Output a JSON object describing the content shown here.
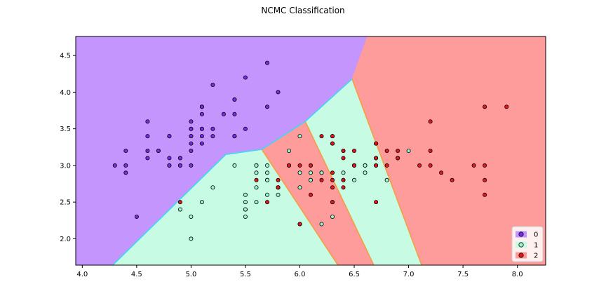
{
  "chart_data": {
    "type": "scatter",
    "title": "NCMC Classification",
    "xlabel": "",
    "ylabel": "",
    "xlim": [
      3.94,
      8.26
    ],
    "ylim": [
      1.64,
      4.76
    ],
    "xticks": [
      "4.0",
      "4.5",
      "5.0",
      "5.5",
      "6.0",
      "6.5",
      "7.0",
      "7.5",
      "8.0"
    ],
    "yticks": [
      "2.0",
      "2.5",
      "3.0",
      "3.5",
      "4.0",
      "4.5"
    ],
    "grid": false,
    "legend_position": "bottom-right",
    "colors": {
      "region_0": "#c495fd",
      "region_1": "#c8fbe4",
      "region_2": "#fe9b9b",
      "boundary_01": "#3fd8f2",
      "boundary_12": "#f2a040",
      "point_0": "#7c2be6",
      "point_1": "#9bf6cf",
      "point_2": "#e81616"
    },
    "regions": [
      {
        "class": "0",
        "polygon": [
          [
            3.94,
            4.76
          ],
          [
            6.62,
            4.76
          ],
          [
            6.48,
            4.18
          ],
          [
            6.05,
            3.6
          ],
          [
            5.65,
            3.22
          ],
          [
            5.32,
            3.15
          ],
          [
            4.28,
            1.64
          ],
          [
            3.94,
            1.64
          ]
        ]
      },
      {
        "class": "1",
        "polygon": [
          [
            4.28,
            1.64
          ],
          [
            5.32,
            3.15
          ],
          [
            5.65,
            3.22
          ],
          [
            6.35,
            1.64
          ]
        ]
      },
      {
        "class": "2",
        "polygon": [
          [
            5.65,
            3.22
          ],
          [
            6.05,
            3.6
          ],
          [
            6.68,
            1.64
          ],
          [
            6.35,
            1.64
          ]
        ]
      },
      {
        "class": "1",
        "polygon": [
          [
            6.05,
            3.6
          ],
          [
            6.48,
            4.18
          ],
          [
            7.12,
            1.64
          ],
          [
            6.68,
            1.64
          ]
        ]
      },
      {
        "class": "2",
        "polygon": [
          [
            6.48,
            4.18
          ],
          [
            6.62,
            4.76
          ],
          [
            8.26,
            4.76
          ],
          [
            8.26,
            1.64
          ],
          [
            7.12,
            1.64
          ]
        ]
      }
    ],
    "series": [
      {
        "name": "0",
        "points": [
          [
            5.1,
            3.5
          ],
          [
            4.9,
            3.0
          ],
          [
            4.7,
            3.2
          ],
          [
            4.6,
            3.1
          ],
          [
            5.0,
            3.6
          ],
          [
            5.4,
            3.9
          ],
          [
            4.6,
            3.4
          ],
          [
            5.0,
            3.4
          ],
          [
            4.4,
            2.9
          ],
          [
            4.9,
            3.1
          ],
          [
            5.4,
            3.7
          ],
          [
            4.8,
            3.4
          ],
          [
            4.8,
            3.0
          ],
          [
            4.3,
            3.0
          ],
          [
            5.8,
            4.0
          ],
          [
            5.7,
            4.4
          ],
          [
            5.4,
            3.9
          ],
          [
            5.1,
            3.5
          ],
          [
            5.7,
            3.8
          ],
          [
            5.1,
            3.8
          ],
          [
            5.4,
            3.4
          ],
          [
            5.1,
            3.7
          ],
          [
            4.6,
            3.6
          ],
          [
            5.1,
            3.3
          ],
          [
            4.8,
            3.4
          ],
          [
            5.0,
            3.0
          ],
          [
            5.0,
            3.4
          ],
          [
            5.2,
            3.5
          ],
          [
            5.2,
            3.4
          ],
          [
            4.7,
            3.2
          ],
          [
            4.8,
            3.1
          ],
          [
            5.4,
            3.4
          ],
          [
            5.2,
            4.1
          ],
          [
            5.5,
            4.2
          ],
          [
            4.9,
            3.1
          ],
          [
            5.0,
            3.2
          ],
          [
            5.5,
            3.5
          ],
          [
            4.4,
            3.0
          ],
          [
            5.1,
            3.4
          ],
          [
            5.0,
            3.5
          ],
          [
            4.5,
            2.3
          ],
          [
            4.4,
            3.2
          ],
          [
            5.0,
            3.5
          ],
          [
            5.1,
            3.8
          ],
          [
            4.8,
            3.0
          ],
          [
            5.3,
            3.7
          ],
          [
            5.0,
            3.3
          ],
          [
            4.9,
            3.0
          ],
          [
            4.6,
            3.2
          ],
          [
            5.1,
            3.8
          ]
        ]
      },
      {
        "name": "1",
        "points": [
          [
            6.4,
            3.2
          ],
          [
            6.9,
            3.1
          ],
          [
            5.5,
            2.3
          ],
          [
            6.5,
            2.8
          ],
          [
            5.7,
            2.8
          ],
          [
            6.3,
            3.3
          ],
          [
            4.9,
            2.4
          ],
          [
            6.6,
            2.9
          ],
          [
            5.2,
            2.7
          ],
          [
            5.0,
            2.0
          ],
          [
            5.9,
            3.0
          ],
          [
            6.0,
            2.2
          ],
          [
            6.1,
            2.9
          ],
          [
            5.6,
            2.9
          ],
          [
            6.7,
            3.1
          ],
          [
            5.6,
            3.0
          ],
          [
            5.8,
            2.7
          ],
          [
            6.2,
            2.2
          ],
          [
            5.6,
            2.5
          ],
          [
            5.9,
            3.2
          ],
          [
            6.1,
            2.8
          ],
          [
            6.3,
            2.5
          ],
          [
            6.1,
            2.8
          ],
          [
            6.4,
            2.9
          ],
          [
            6.6,
            3.0
          ],
          [
            6.8,
            2.8
          ],
          [
            6.7,
            3.0
          ],
          [
            6.0,
            2.9
          ],
          [
            5.7,
            2.6
          ],
          [
            5.5,
            2.4
          ],
          [
            5.5,
            2.4
          ],
          [
            5.8,
            2.7
          ],
          [
            6.0,
            2.7
          ],
          [
            5.4,
            3.0
          ],
          [
            6.0,
            3.4
          ],
          [
            6.7,
            3.1
          ],
          [
            6.3,
            2.3
          ],
          [
            5.6,
            3.0
          ],
          [
            5.5,
            2.5
          ],
          [
            5.5,
            2.6
          ],
          [
            6.1,
            3.0
          ],
          [
            5.8,
            2.6
          ],
          [
            5.0,
            2.3
          ],
          [
            5.6,
            2.7
          ],
          [
            5.7,
            3.0
          ],
          [
            5.7,
            2.9
          ],
          [
            6.2,
            2.9
          ],
          [
            5.1,
            2.5
          ],
          [
            5.7,
            2.8
          ],
          [
            7.0,
            3.2
          ],
          [
            6.6,
            3.0
          ],
          [
            6.2,
            2.9
          ]
        ]
      },
      {
        "name": "2",
        "points": [
          [
            6.3,
            3.3
          ],
          [
            5.8,
            2.7
          ],
          [
            7.1,
            3.0
          ],
          [
            6.3,
            2.9
          ],
          [
            6.5,
            3.0
          ],
          [
            7.6,
            3.0
          ],
          [
            4.9,
            2.5
          ],
          [
            7.3,
            2.9
          ],
          [
            6.7,
            2.5
          ],
          [
            7.2,
            3.6
          ],
          [
            6.5,
            3.2
          ],
          [
            6.4,
            2.7
          ],
          [
            6.8,
            3.0
          ],
          [
            5.7,
            2.5
          ],
          [
            5.8,
            2.8
          ],
          [
            6.4,
            3.2
          ],
          [
            6.5,
            3.0
          ],
          [
            7.7,
            3.8
          ],
          [
            7.7,
            2.6
          ],
          [
            6.0,
            2.2
          ],
          [
            6.9,
            3.2
          ],
          [
            5.6,
            2.8
          ],
          [
            7.7,
            2.8
          ],
          [
            6.3,
            2.7
          ],
          [
            6.7,
            3.3
          ],
          [
            7.2,
            3.2
          ],
          [
            6.2,
            2.8
          ],
          [
            6.1,
            3.0
          ],
          [
            6.4,
            2.8
          ],
          [
            7.2,
            3.0
          ],
          [
            7.4,
            2.8
          ],
          [
            7.9,
            3.8
          ],
          [
            6.4,
            2.8
          ],
          [
            6.3,
            2.8
          ],
          [
            6.1,
            2.6
          ],
          [
            7.7,
            3.0
          ],
          [
            6.3,
            3.4
          ],
          [
            6.4,
            3.1
          ],
          [
            6.0,
            3.0
          ],
          [
            6.9,
            3.1
          ],
          [
            6.7,
            3.1
          ],
          [
            6.9,
            3.1
          ],
          [
            5.8,
            2.7
          ],
          [
            6.8,
            3.2
          ],
          [
            6.7,
            3.3
          ],
          [
            6.7,
            3.0
          ],
          [
            6.3,
            2.5
          ],
          [
            6.5,
            3.0
          ],
          [
            6.2,
            3.4
          ],
          [
            5.9,
            3.0
          ],
          [
            6.3,
            3.4
          ],
          [
            5.9,
            3.0
          ]
        ]
      }
    ]
  }
}
